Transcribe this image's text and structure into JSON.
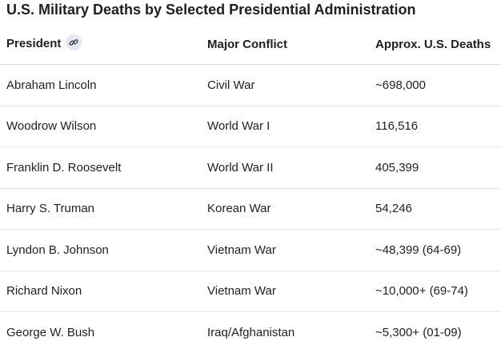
{
  "title": "U.S. Military Deaths by Selected Presidential Administration",
  "table": {
    "headers": {
      "president": "President",
      "conflict": "Major Conflict",
      "deaths": "Approx. U.S. Deaths"
    },
    "header_icon": "link-icon",
    "rows": [
      {
        "president": "Abraham Lincoln",
        "conflict": "Civil War",
        "deaths": "~698,000"
      },
      {
        "president": "Woodrow Wilson",
        "conflict": "World War I",
        "deaths": "116,516"
      },
      {
        "president": "Franklin D. Roosevelt",
        "conflict": "World War II",
        "deaths": "405,399"
      },
      {
        "president": "Harry S. Truman",
        "conflict": "Korean War",
        "deaths": "54,246"
      },
      {
        "president": "Lyndon B. Johnson",
        "conflict": "Vietnam War",
        "deaths": "~48,399 (64-69)"
      },
      {
        "president": "Richard Nixon",
        "conflict": "Vietnam War",
        "deaths": "~10,000+ (69-74)"
      },
      {
        "president": "George W. Bush",
        "conflict": "Iraq/Afghanistan",
        "deaths": "~5,300+ (01-09)"
      }
    ]
  },
  "colors": {
    "text": "#1f1f1f",
    "divider": "#e6e6e6",
    "chip_bg": "#e3e8f4",
    "chip_icon": "#444746"
  }
}
